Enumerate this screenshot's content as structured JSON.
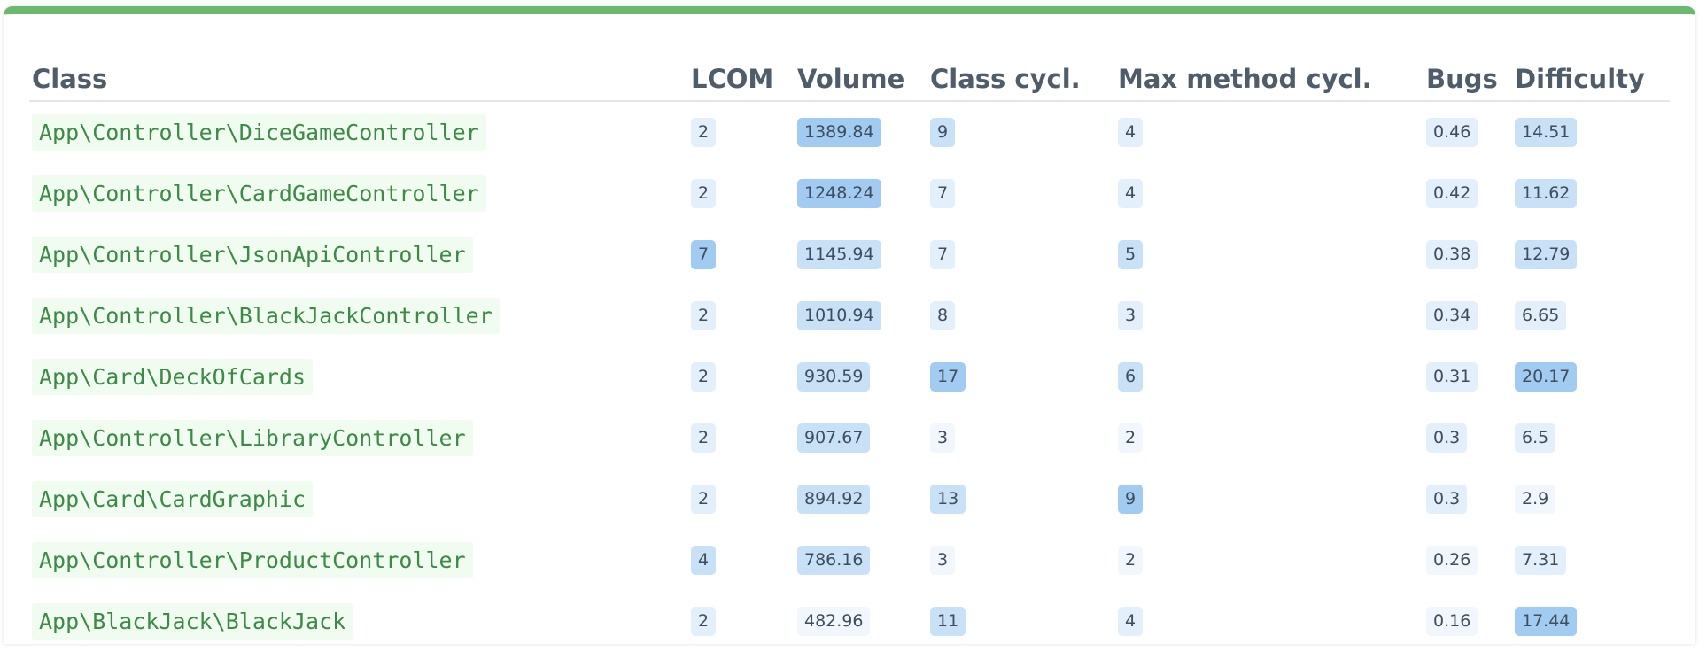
{
  "accent_color": "#6cb86e",
  "table": {
    "columns": [
      "Class",
      "LCOM",
      "Volume",
      "Class cycl.",
      "Max method cycl.",
      "Bugs",
      "Difficulty"
    ],
    "rows": [
      {
        "class": "App\\Controller\\DiceGameController",
        "lcom": "2",
        "volume": "1389.84",
        "class_cycl": "9",
        "max_method_cycl": "4",
        "bugs": "0.46",
        "difficulty": "14.51"
      },
      {
        "class": "App\\Controller\\CardGameController",
        "lcom": "2",
        "volume": "1248.24",
        "class_cycl": "7",
        "max_method_cycl": "4",
        "bugs": "0.42",
        "difficulty": "11.62"
      },
      {
        "class": "App\\Controller\\JsonApiController",
        "lcom": "7",
        "volume": "1145.94",
        "class_cycl": "7",
        "max_method_cycl": "5",
        "bugs": "0.38",
        "difficulty": "12.79"
      },
      {
        "class": "App\\Controller\\BlackJackController",
        "lcom": "2",
        "volume": "1010.94",
        "class_cycl": "8",
        "max_method_cycl": "3",
        "bugs": "0.34",
        "difficulty": "6.65"
      },
      {
        "class": "App\\Card\\DeckOfCards",
        "lcom": "2",
        "volume": "930.59",
        "class_cycl": "17",
        "max_method_cycl": "6",
        "bugs": "0.31",
        "difficulty": "20.17"
      },
      {
        "class": "App\\Controller\\LibraryController",
        "lcom": "2",
        "volume": "907.67",
        "class_cycl": "3",
        "max_method_cycl": "2",
        "bugs": "0.3",
        "difficulty": "6.5"
      },
      {
        "class": "App\\Card\\CardGraphic",
        "lcom": "2",
        "volume": "894.92",
        "class_cycl": "13",
        "max_method_cycl": "9",
        "bugs": "0.3",
        "difficulty": "2.9"
      },
      {
        "class": "App\\Controller\\ProductController",
        "lcom": "4",
        "volume": "786.16",
        "class_cycl": "3",
        "max_method_cycl": "2",
        "bugs": "0.26",
        "difficulty": "7.31"
      },
      {
        "class": "App\\BlackJack\\BlackJack",
        "lcom": "2",
        "volume": "482.96",
        "class_cycl": "11",
        "max_method_cycl": "4",
        "bugs": "0.16",
        "difficulty": "17.44"
      }
    ]
  }
}
